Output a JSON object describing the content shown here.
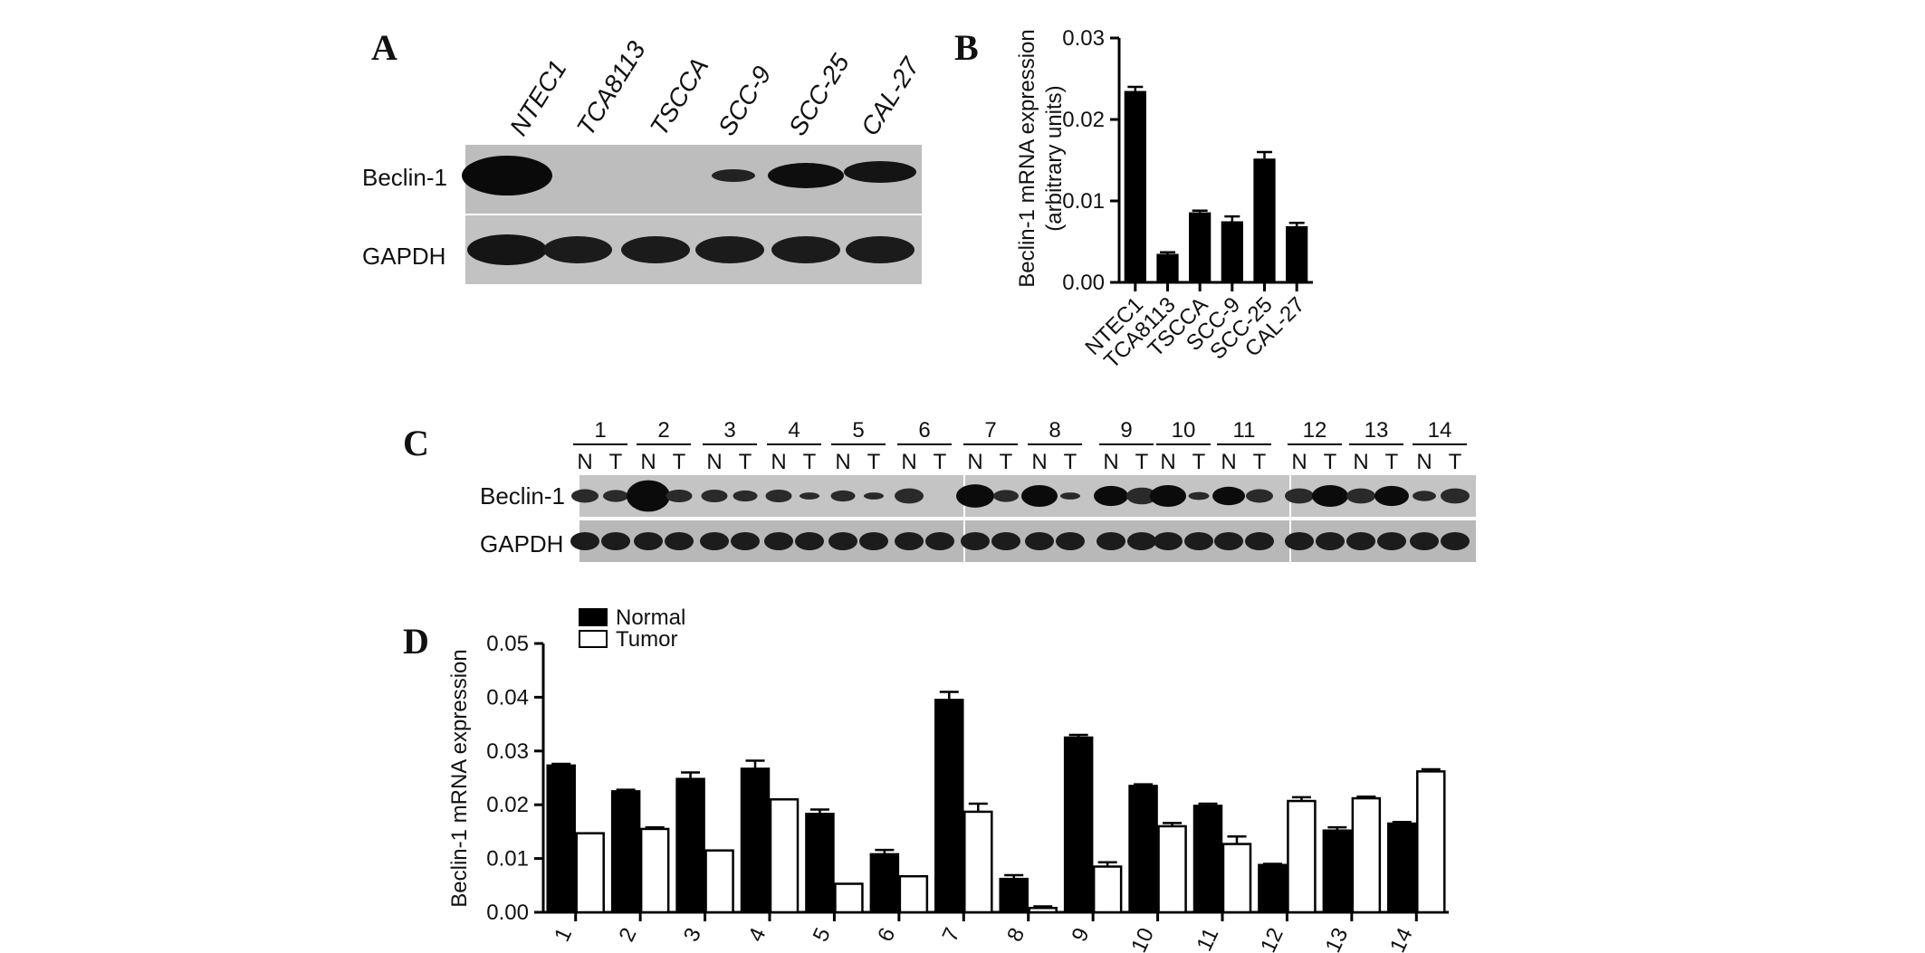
{
  "panels": {
    "A": "A",
    "B": "B",
    "C": "C",
    "D": "D"
  },
  "blot_a": {
    "lanes": [
      "NTEC1",
      "TCA8113",
      "TSCCA",
      "SCC-9",
      "SCC-25",
      "CAL-27"
    ],
    "rows": [
      "Beclin-1",
      "GAPDH"
    ]
  },
  "blot_c": {
    "cases": [
      "1",
      "2",
      "3",
      "4",
      "5",
      "6",
      "7",
      "8",
      "9",
      "10",
      "11",
      "12",
      "13",
      "14"
    ],
    "lane_labels": [
      "N",
      "T"
    ],
    "rows": [
      "Beclin-1",
      "GAPDH"
    ]
  },
  "chart_data": [
    {
      "type": "bar",
      "panel": "B",
      "categories": [
        "NTEC1",
        "TCA8113",
        "TSCCA",
        "SCC-9",
        "SCC-25",
        "CAL-27"
      ],
      "values": [
        0.0235,
        0.0035,
        0.0086,
        0.0075,
        0.0152,
        0.0069
      ],
      "errors": [
        0.0005,
        0.0002,
        0.0002,
        0.0006,
        0.0008,
        0.0004
      ],
      "ylabel_line1": "Beclin-1 mRNA expression",
      "ylabel_line2": "(arbitrary units)",
      "ylim": [
        0,
        0.03
      ],
      "yticks": [
        "0.00",
        "0.01",
        "0.02",
        "0.03"
      ],
      "bar_color": "#000000"
    },
    {
      "type": "bar",
      "panel": "D",
      "categories": [
        "1",
        "2",
        "3",
        "4",
        "5",
        "6",
        "7",
        "8",
        "9",
        "10",
        "11",
        "12",
        "13",
        "14"
      ],
      "series": [
        {
          "name": "Normal",
          "fill": "#000000",
          "values": [
            0.0273,
            0.0225,
            0.0248,
            0.0267,
            0.0183,
            0.0108,
            0.0395,
            0.0062,
            0.0325,
            0.0235,
            0.0198,
            0.0088,
            0.0152,
            0.0165
          ],
          "errors": [
            0.0003,
            0.0003,
            0.0012,
            0.0015,
            0.0008,
            0.0008,
            0.0015,
            0.0007,
            0.0005,
            0.0003,
            0.0004,
            0.0002,
            0.0006,
            0.0003
          ]
        },
        {
          "name": "Tumor",
          "fill": "#ffffff",
          "values": [
            0.0147,
            0.0155,
            0.0115,
            0.021,
            0.0053,
            0.0067,
            0.0187,
            0.0008,
            0.0085,
            0.016,
            0.0127,
            0.0207,
            0.0212,
            0.0262
          ],
          "errors": [
            0,
            0.0003,
            0,
            0,
            0,
            0,
            0.0015,
            0.0003,
            0.0008,
            0.0006,
            0.0014,
            0.0007,
            0.0003,
            0.0004
          ]
        }
      ],
      "ylabel": "Beclin-1 mRNA expression",
      "ylim": [
        0,
        0.05
      ],
      "yticks": [
        "0.00",
        "0.01",
        "0.02",
        "0.03",
        "0.04",
        "0.05"
      ],
      "legend_position": "top-left"
    }
  ]
}
